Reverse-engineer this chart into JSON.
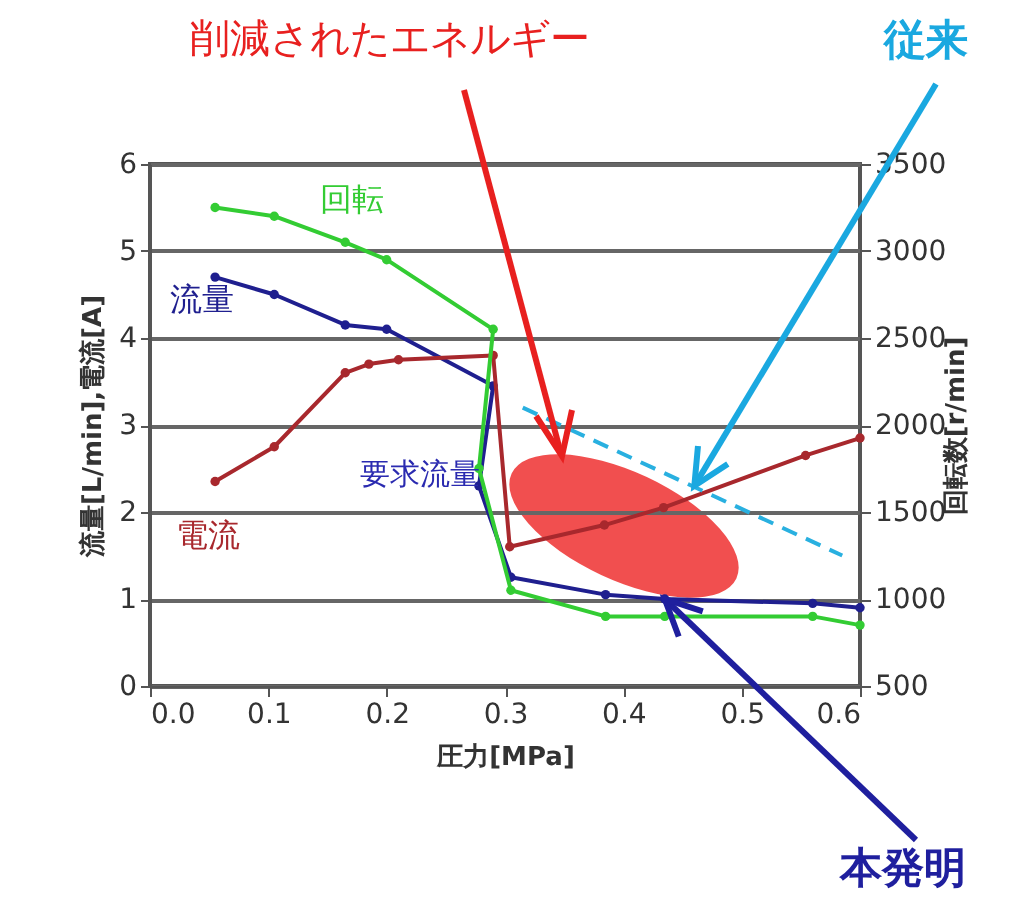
{
  "chart_data": {
    "type": "line",
    "xlabel": "圧力[MPa]",
    "ylabel": "流量[L/min],電流[A]",
    "y2label": "回転数[r/min]",
    "annotations": [
      "削減されたエネルギー",
      {
        "text": "従来",
        "x": 0.46,
        "y": 2.3
      },
      {
        "text": "本発明",
        "x": 0.435,
        "y": 1.0
      },
      "要求流量"
    ],
    "series": [
      {
        "name": "回転",
        "color": "#33cc33",
        "axis": "y2",
        "x": [
          0.055,
          0.105,
          0.165,
          0.2,
          0.29,
          0.278,
          0.305,
          0.385,
          0.435,
          0.56,
          0.6
        ],
        "values": [
          3250,
          3200,
          3050,
          2950,
          2550,
          1750,
          1050,
          900,
          900,
          900,
          850
        ]
      },
      {
        "name": "流量",
        "color": "#1f1f8f",
        "x": [
          0.055,
          0.105,
          0.165,
          0.2,
          0.29,
          0.278,
          0.305,
          0.385,
          0.435,
          0.56,
          0.6
        ],
        "values": [
          4.7,
          4.5,
          4.15,
          4.1,
          3.45,
          2.3,
          1.25,
          1.05,
          1.0,
          0.95,
          0.9
        ]
      },
      {
        "name": "電流",
        "color": "#a8282d",
        "x": [
          0.055,
          0.105,
          0.165,
          0.185,
          0.21,
          0.29,
          0.304,
          0.384,
          0.434,
          0.554,
          0.6
        ],
        "values": [
          2.35,
          2.75,
          3.6,
          3.7,
          3.75,
          3.8,
          1.6,
          1.85,
          2.05,
          2.65,
          2.85
        ]
      },
      {
        "color": "#29b0e0",
        "x": [
          0.315,
          0.585
        ],
        "values": [
          3.2,
          1.5
        ],
        "line_style": "dashed",
        "marker": "none"
      }
    ],
    "xlim": [
      0,
      0.6
    ],
    "xticks": [
      {
        "value": 0,
        "label": "0.0"
      },
      0.1,
      0.2,
      0.3,
      0.4,
      0.5,
      0.6
    ],
    "ylim": [
      0,
      6
    ],
    "yticks": [
      0,
      1,
      2,
      3,
      4,
      5,
      6
    ],
    "y2lim": [
      500,
      3500
    ],
    "y2ticks": [
      500,
      1000,
      1500,
      2000,
      2500,
      3000,
      3500
    ],
    "grid": "y",
    "marker": "circle"
  }
}
